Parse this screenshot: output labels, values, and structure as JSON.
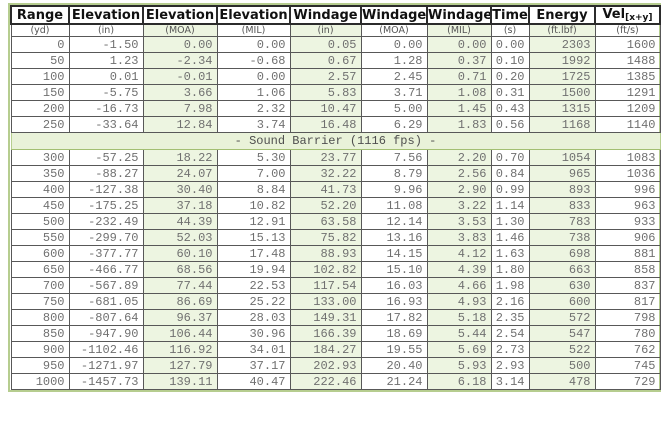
{
  "table": {
    "columns": [
      {
        "label": "Range",
        "unit": "(yd)"
      },
      {
        "label": "Elevation",
        "unit": "(in)"
      },
      {
        "label": "Elevation",
        "unit": "(MOA)"
      },
      {
        "label": "Elevation",
        "unit": "(MIL)"
      },
      {
        "label": "Windage",
        "unit": "(in)"
      },
      {
        "label": "Windage",
        "unit": "(MOA)"
      },
      {
        "label": "Windage",
        "unit": "(MIL)"
      },
      {
        "label": "Time",
        "unit": "(s)"
      },
      {
        "label": "Energy",
        "unit": "(ft.lbf)"
      },
      {
        "label": "Vel",
        "label_sub": "[x+y]",
        "unit": "(ft/s)"
      }
    ],
    "rows_supersonic": [
      [
        "0",
        "-1.50",
        "0.00",
        "0.00",
        "0.05",
        "0.00",
        "0.00",
        "0.00",
        "2303",
        "1600"
      ],
      [
        "50",
        "1.23",
        "-2.34",
        "-0.68",
        "0.67",
        "1.28",
        "0.37",
        "0.10",
        "1992",
        "1488"
      ],
      [
        "100",
        "0.01",
        "-0.01",
        "0.00",
        "2.57",
        "2.45",
        "0.71",
        "0.20",
        "1725",
        "1385"
      ],
      [
        "150",
        "-5.75",
        "3.66",
        "1.06",
        "5.83",
        "3.71",
        "1.08",
        "0.31",
        "1500",
        "1291"
      ],
      [
        "200",
        "-16.73",
        "7.98",
        "2.32",
        "10.47",
        "5.00",
        "1.45",
        "0.43",
        "1315",
        "1209"
      ],
      [
        "250",
        "-33.64",
        "12.84",
        "3.74",
        "16.48",
        "6.29",
        "1.83",
        "0.56",
        "1168",
        "1140"
      ]
    ],
    "sound_barrier_label": "- Sound Barrier (1116 fps) -",
    "rows_subsonic": [
      [
        "300",
        "-57.25",
        "18.22",
        "5.30",
        "23.77",
        "7.56",
        "2.20",
        "0.70",
        "1054",
        "1083"
      ],
      [
        "350",
        "-88.27",
        "24.07",
        "7.00",
        "32.22",
        "8.79",
        "2.56",
        "0.84",
        "965",
        "1036"
      ],
      [
        "400",
        "-127.38",
        "30.40",
        "8.84",
        "41.73",
        "9.96",
        "2.90",
        "0.99",
        "893",
        "996"
      ],
      [
        "450",
        "-175.25",
        "37.18",
        "10.82",
        "52.20",
        "11.08",
        "3.22",
        "1.14",
        "833",
        "963"
      ],
      [
        "500",
        "-232.49",
        "44.39",
        "12.91",
        "63.58",
        "12.14",
        "3.53",
        "1.30",
        "783",
        "933"
      ],
      [
        "550",
        "-299.70",
        "52.03",
        "15.13",
        "75.82",
        "13.16",
        "3.83",
        "1.46",
        "738",
        "906"
      ],
      [
        "600",
        "-377.77",
        "60.10",
        "17.48",
        "88.93",
        "14.15",
        "4.12",
        "1.63",
        "698",
        "881"
      ],
      [
        "650",
        "-466.77",
        "68.56",
        "19.94",
        "102.82",
        "15.10",
        "4.39",
        "1.80",
        "663",
        "858"
      ],
      [
        "700",
        "-567.89",
        "77.44",
        "22.53",
        "117.54",
        "16.03",
        "4.66",
        "1.98",
        "630",
        "837"
      ],
      [
        "750",
        "-681.05",
        "86.69",
        "25.22",
        "133.00",
        "16.93",
        "4.93",
        "2.16",
        "600",
        "817"
      ],
      [
        "800",
        "-807.64",
        "96.37",
        "28.03",
        "149.31",
        "17.82",
        "5.18",
        "2.35",
        "572",
        "798"
      ],
      [
        "850",
        "-947.90",
        "106.44",
        "30.96",
        "166.39",
        "18.69",
        "5.44",
        "2.54",
        "547",
        "780"
      ],
      [
        "900",
        "-1102.46",
        "116.92",
        "34.01",
        "184.27",
        "19.55",
        "5.69",
        "2.73",
        "522",
        "762"
      ],
      [
        "950",
        "-1271.97",
        "127.79",
        "37.17",
        "202.93",
        "20.40",
        "5.93",
        "2.93",
        "500",
        "745"
      ],
      [
        "1000",
        "-1457.73",
        "139.11",
        "40.47",
        "222.46",
        "21.24",
        "6.18",
        "3.14",
        "478",
        "729"
      ]
    ]
  },
  "colors": {
    "tint": "#edf5e1",
    "barrier_bg": "#e9f2d9",
    "frame_border": "#b6cd8f",
    "barrier_border": "#a3bf72",
    "cell_border": "#585858",
    "header_border": "#2b2b2b",
    "data_text": "#707070",
    "header_text": "#111111",
    "unit_text": "#555555"
  }
}
